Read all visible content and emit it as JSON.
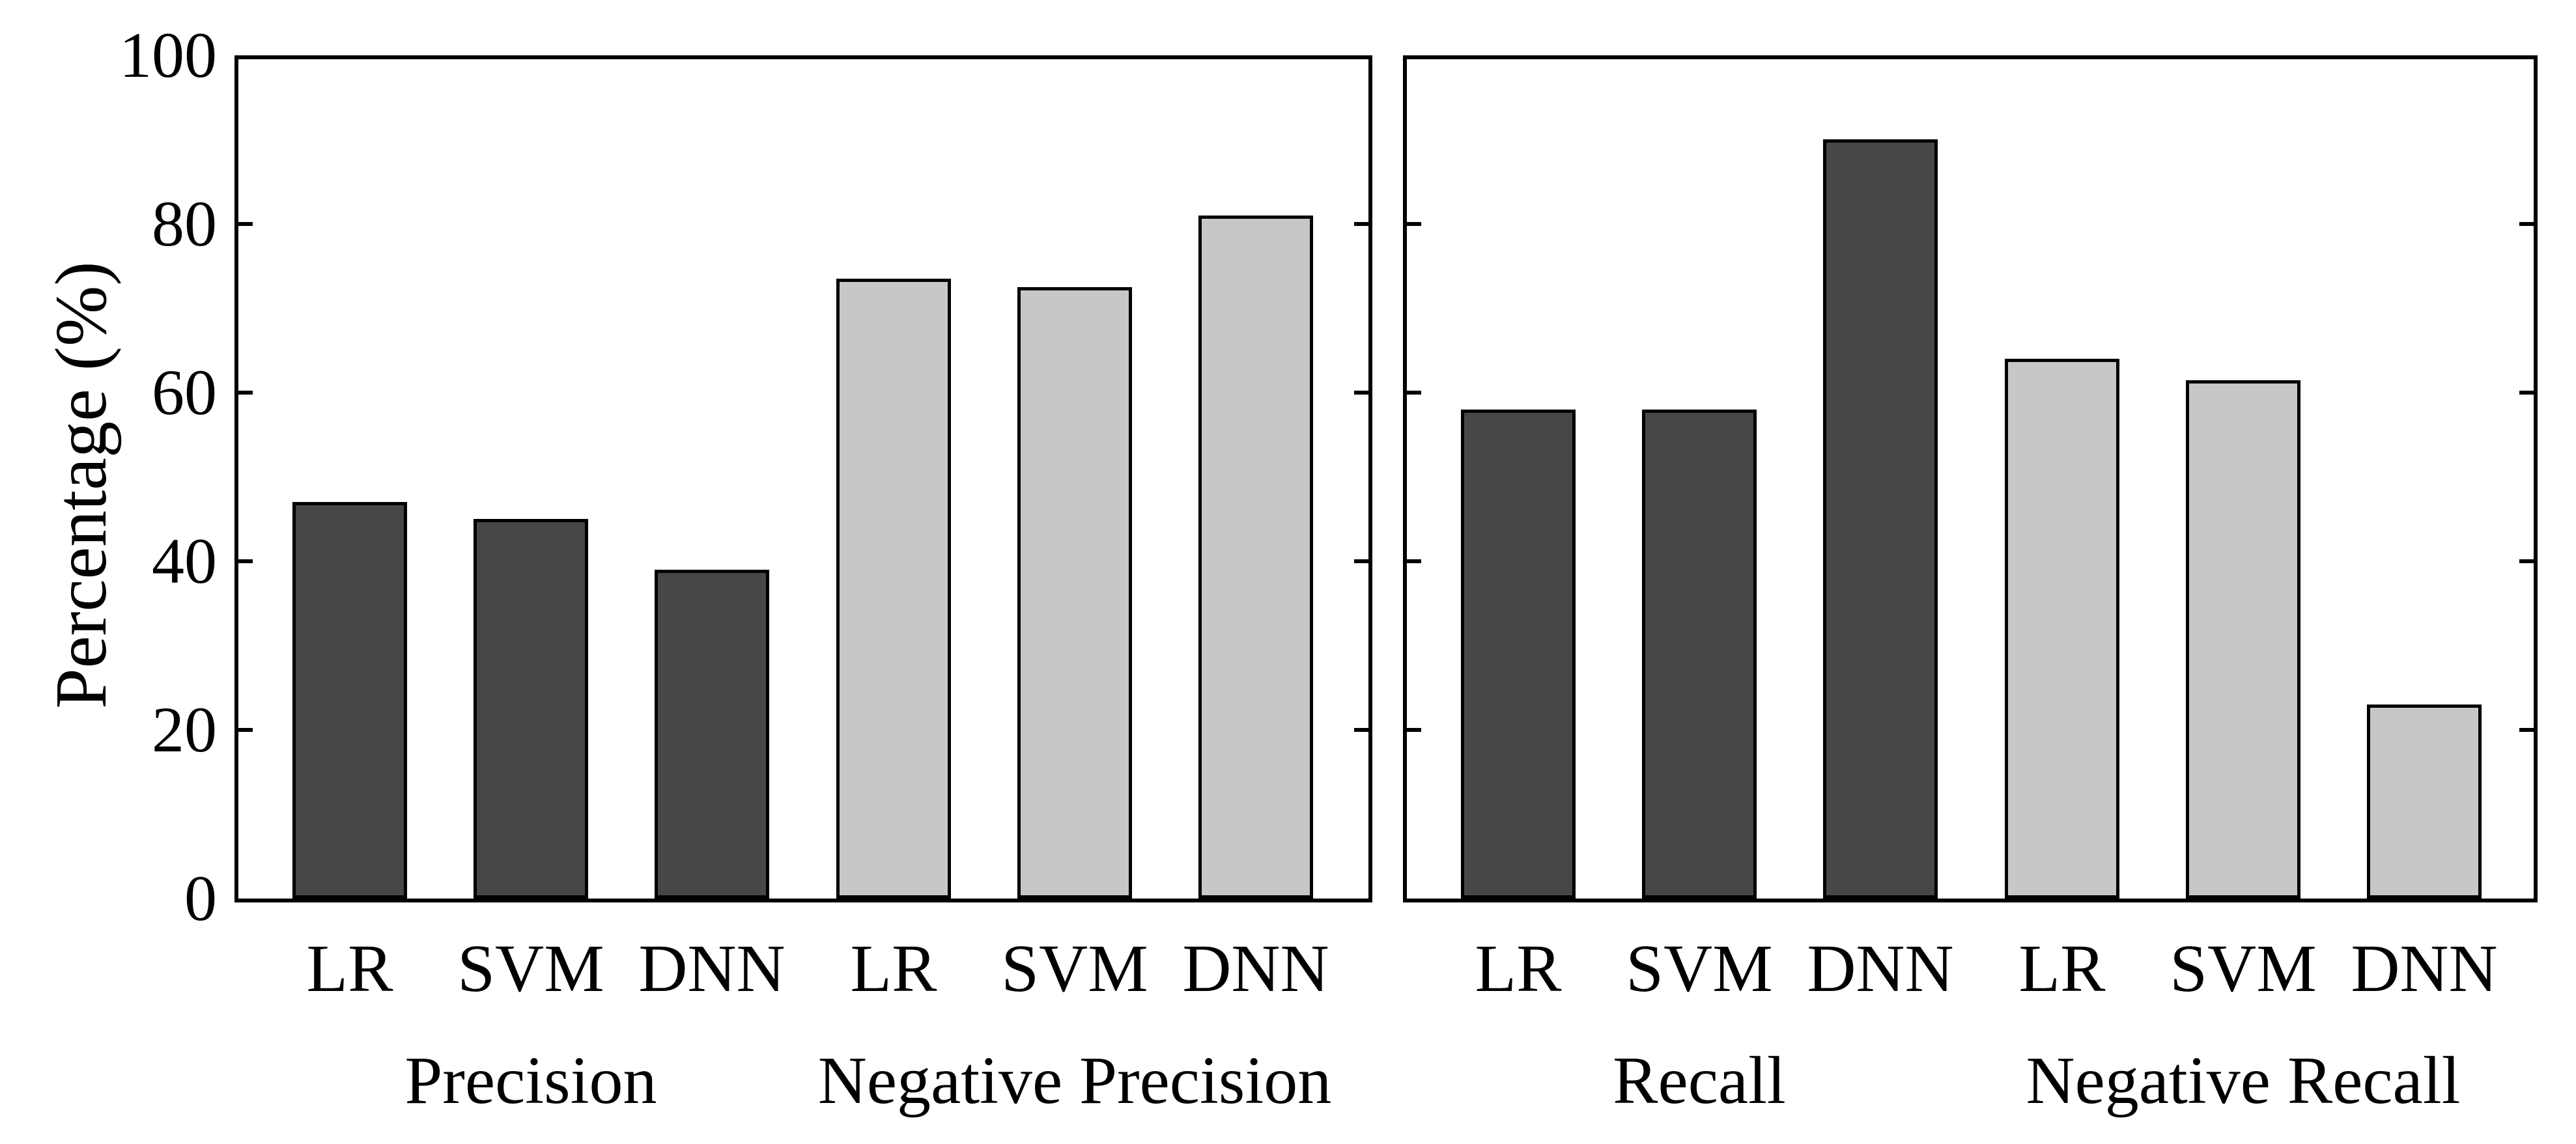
{
  "figure": {
    "background": "#ffffff",
    "text_color": "#000000"
  },
  "y_axis": {
    "label": "Percentage (%)",
    "tick_labels": [
      "0",
      "20",
      "40",
      "60",
      "80",
      "100"
    ]
  },
  "chart_data": {
    "type": "bar",
    "title": "",
    "xlabel": "",
    "ylabel": "Percentage (%)",
    "ylim": [
      0,
      100
    ],
    "yticks": [
      0,
      20,
      40,
      60,
      80,
      100
    ],
    "grid": false,
    "legend": "none",
    "bar_colors": {
      "dark": "#474747",
      "light": "#c7c7c7"
    },
    "bar_edge_color": "#000000",
    "panels": [
      {
        "name": "left",
        "groups": [
          {
            "label": "Precision",
            "shade": "dark",
            "categories": [
              "LR",
              "SVM",
              "DNN"
            ],
            "values": [
              47,
              45,
              39
            ]
          },
          {
            "label": "Negative Precision",
            "shade": "light",
            "categories": [
              "LR",
              "SVM",
              "DNN"
            ],
            "values": [
              73.5,
              72.5,
              81
            ]
          }
        ]
      },
      {
        "name": "right",
        "groups": [
          {
            "label": "Recall",
            "shade": "dark",
            "categories": [
              "LR",
              "SVM",
              "DNN"
            ],
            "values": [
              58,
              58,
              90
            ]
          },
          {
            "label": "Negative Recall",
            "shade": "light",
            "categories": [
              "LR",
              "SVM",
              "DNN"
            ],
            "values": [
              64,
              61.5,
              23
            ]
          }
        ]
      }
    ]
  }
}
